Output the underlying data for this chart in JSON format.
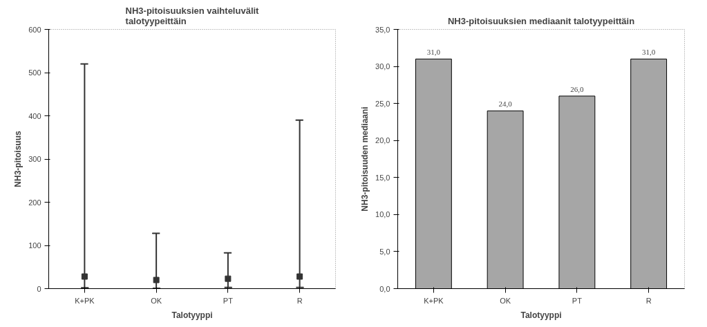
{
  "chart_data": [
    {
      "type": "bar",
      "title": "NH3-pitoisuuksien vaihteluvälit\ntalotyypeittäin",
      "xlabel": "Talotyyppi",
      "ylabel": "NH3-pitoisuus",
      "categories": [
        "K+PK",
        "OK",
        "PT",
        "R"
      ],
      "series": [
        {
          "type": "scatter",
          "color": "#333333",
          "values": [
            28,
            20,
            23,
            28
          ],
          "errors": [
            [
              2,
              520
            ],
            [
              1,
              128
            ],
            [
              3,
              83
            ],
            [
              3,
              390
            ]
          ]
        }
      ],
      "ylim": [
        0,
        600
      ],
      "yticks": [
        0,
        100,
        200,
        300,
        400,
        500,
        600
      ],
      "marker": "square",
      "grid": false
    },
    {
      "type": "bar",
      "title": "NH3-pitoisuuksien mediaanit talotyypeittäin",
      "xlabel": "Talotyyppi",
      "ylabel": "NH3-pitoisuuden mediaani",
      "categories": [
        "K+PK",
        "OK",
        "PT",
        "R"
      ],
      "values": [
        31,
        24,
        26,
        31
      ],
      "color": "#a6a6a6",
      "grid": false,
      "value_labels": [
        "31,0",
        "24,0",
        "26,0",
        "31,0"
      ],
      "ylim": [
        0,
        35
      ],
      "yticks": [
        {
          "value": 0,
          "label": "0,0"
        },
        {
          "value": 5,
          "label": "5,0"
        },
        {
          "value": 10,
          "label": "10,0"
        },
        {
          "value": 15,
          "label": "15,0"
        },
        {
          "value": 20,
          "label": "20,0"
        },
        {
          "value": 25,
          "label": "25,0"
        },
        {
          "value": 30,
          "label": "30,0"
        },
        {
          "value": 35,
          "label": "35,0"
        }
      ]
    }
  ]
}
